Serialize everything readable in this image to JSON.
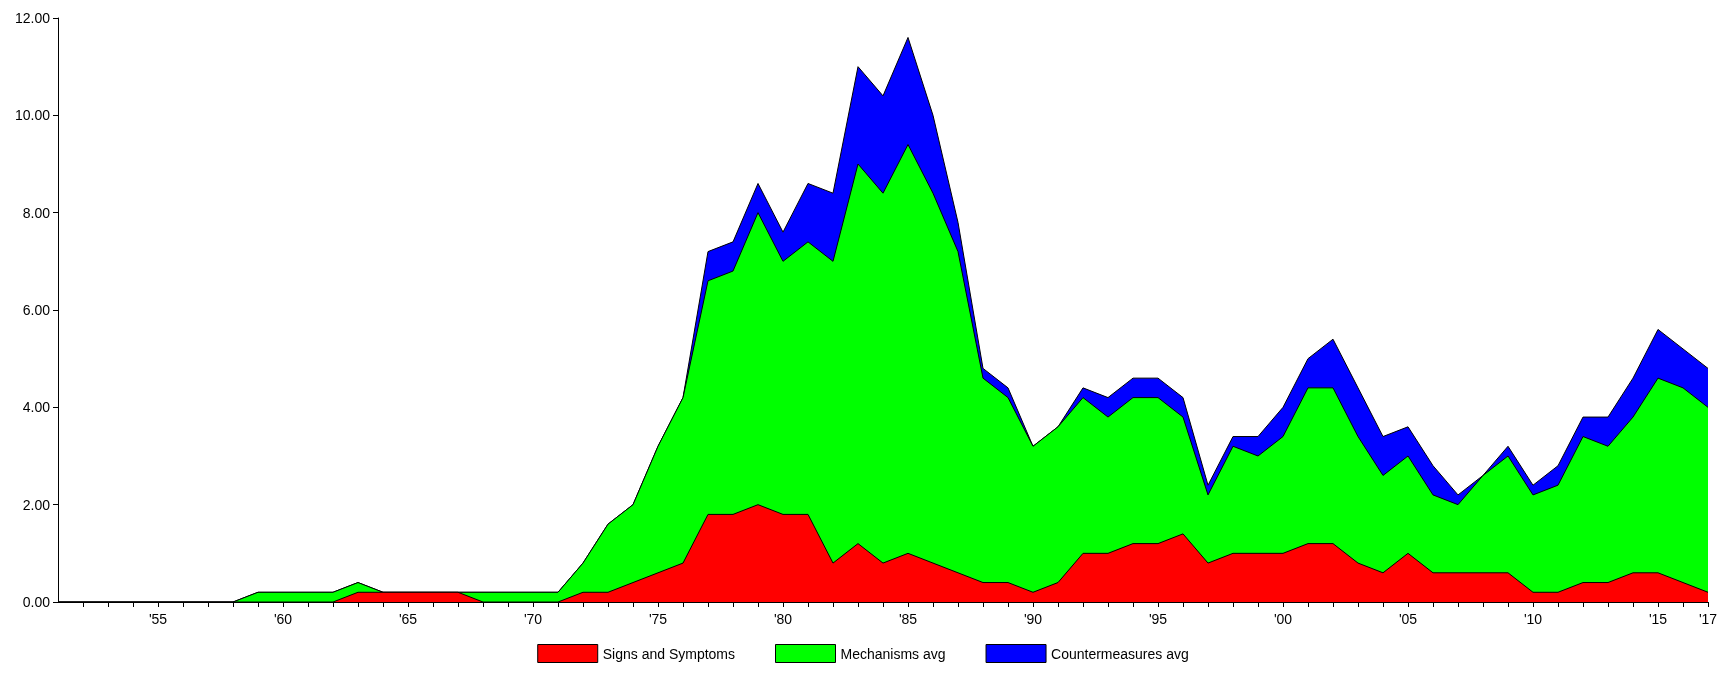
{
  "chart_data": {
    "type": "area",
    "stacked": true,
    "legend": "bottom",
    "grid": false,
    "marker": "none",
    "x": [
      1951,
      1952,
      1953,
      1954,
      1955,
      1956,
      1957,
      1958,
      1959,
      1960,
      1961,
      1962,
      1963,
      1964,
      1965,
      1966,
      1967,
      1968,
      1969,
      1970,
      1971,
      1972,
      1973,
      1974,
      1975,
      1976,
      1977,
      1978,
      1979,
      1980,
      1981,
      1982,
      1983,
      1984,
      1985,
      1986,
      1987,
      1988,
      1989,
      1990,
      1991,
      1992,
      1993,
      1994,
      1995,
      1996,
      1997,
      1998,
      1999,
      2000,
      2001,
      2002,
      2003,
      2004,
      2005,
      2006,
      2007,
      2008,
      2009,
      2010,
      2011,
      2012,
      2013,
      2014,
      2015,
      2016,
      2017
    ],
    "series": [
      {
        "name": "Signs and Symptoms",
        "color": "#ff0000",
        "values": [
          0,
          0,
          0,
          0,
          0,
          0,
          0,
          0,
          0,
          0,
          0,
          0,
          0.2,
          0.2,
          0.2,
          0.2,
          0.2,
          0,
          0,
          0,
          0,
          0.2,
          0.2,
          0.4,
          0.6,
          0.8,
          1.8,
          1.8,
          2.0,
          1.8,
          1.8,
          0.8,
          1.2,
          0.8,
          1.0,
          0.8,
          0.6,
          0.4,
          0.4,
          0.2,
          0.4,
          1.0,
          1.0,
          1.2,
          1.2,
          1.4,
          0.8,
          1.0,
          1.0,
          1.0,
          1.2,
          1.2,
          0.8,
          0.6,
          1.0,
          0.6,
          0.6,
          0.6,
          0.6,
          0.2,
          0.2,
          0.4,
          0.4,
          0.6,
          0.6,
          0.4,
          0.2
        ]
      },
      {
        "name": "Mechanisms avg",
        "color": "#00ff00",
        "values": [
          0,
          0,
          0,
          0,
          0,
          0,
          0,
          0,
          0.2,
          0.2,
          0.2,
          0.2,
          0.2,
          0,
          0,
          0,
          0,
          0.2,
          0.2,
          0.2,
          0.2,
          0.6,
          1.4,
          1.6,
          2.6,
          3.4,
          4.8,
          5.0,
          6.0,
          5.2,
          5.6,
          6.2,
          7.8,
          7.6,
          8.4,
          7.6,
          6.6,
          4.2,
          3.8,
          3.0,
          3.2,
          3.2,
          2.8,
          3.0,
          3.0,
          2.4,
          1.4,
          2.2,
          2.0,
          2.4,
          3.2,
          3.2,
          2.6,
          2.0,
          2.0,
          1.6,
          1.4,
          2.0,
          2.4,
          2.0,
          2.2,
          3.0,
          2.8,
          3.2,
          4.0,
          4.0,
          3.8
        ]
      },
      {
        "name": "Countermeasures avg",
        "color": "#0000ff",
        "values": [
          0,
          0,
          0,
          0,
          0,
          0,
          0,
          0,
          0,
          0,
          0,
          0,
          0,
          0,
          0,
          0,
          0,
          0,
          0,
          0,
          0,
          0,
          0,
          0,
          0,
          0,
          0.6,
          0.6,
          0.6,
          0.6,
          1.2,
          1.4,
          2.0,
          2.0,
          2.2,
          1.6,
          0.6,
          0.2,
          0.2,
          0,
          0,
          0.2,
          0.4,
          0.4,
          0.4,
          0.4,
          0.2,
          0.2,
          0.4,
          0.6,
          0.6,
          1.0,
          1.0,
          0.8,
          0.6,
          0.6,
          0.2,
          0,
          0.2,
          0.2,
          0.4,
          0.4,
          0.6,
          0.8,
          1.0,
          0.8,
          0.8
        ]
      }
    ],
    "xlim": [
      1951,
      2017
    ],
    "xticks": [
      {
        "value": 1952,
        "label": null
      },
      {
        "value": 1953,
        "label": null
      },
      {
        "value": 1954,
        "label": null
      },
      {
        "value": 1955,
        "label": "'55"
      },
      {
        "value": 1956,
        "label": null
      },
      {
        "value": 1957,
        "label": null
      },
      {
        "value": 1958,
        "label": null
      },
      {
        "value": 1959,
        "label": null
      },
      {
        "value": 1960,
        "label": "'60"
      },
      {
        "value": 1961,
        "label": null
      },
      {
        "value": 1962,
        "label": null
      },
      {
        "value": 1963,
        "label": null
      },
      {
        "value": 1964,
        "label": null
      },
      {
        "value": 1965,
        "label": "'65"
      },
      {
        "value": 1966,
        "label": null
      },
      {
        "value": 1967,
        "label": null
      },
      {
        "value": 1968,
        "label": null
      },
      {
        "value": 1969,
        "label": null
      },
      {
        "value": 1970,
        "label": "'70"
      },
      {
        "value": 1971,
        "label": null
      },
      {
        "value": 1972,
        "label": null
      },
      {
        "value": 1973,
        "label": null
      },
      {
        "value": 1974,
        "label": null
      },
      {
        "value": 1975,
        "label": "'75"
      },
      {
        "value": 1976,
        "label": null
      },
      {
        "value": 1977,
        "label": null
      },
      {
        "value": 1978,
        "label": null
      },
      {
        "value": 1979,
        "label": null
      },
      {
        "value": 1980,
        "label": "'80"
      },
      {
        "value": 1981,
        "label": null
      },
      {
        "value": 1982,
        "label": null
      },
      {
        "value": 1983,
        "label": null
      },
      {
        "value": 1984,
        "label": null
      },
      {
        "value": 1985,
        "label": "'85"
      },
      {
        "value": 1986,
        "label": null
      },
      {
        "value": 1987,
        "label": null
      },
      {
        "value": 1988,
        "label": null
      },
      {
        "value": 1989,
        "label": null
      },
      {
        "value": 1990,
        "label": "'90"
      },
      {
        "value": 1991,
        "label": null
      },
      {
        "value": 1992,
        "label": null
      },
      {
        "value": 1993,
        "label": null
      },
      {
        "value": 1994,
        "label": null
      },
      {
        "value": 1995,
        "label": "'95"
      },
      {
        "value": 1996,
        "label": null
      },
      {
        "value": 1997,
        "label": null
      },
      {
        "value": 1998,
        "label": null
      },
      {
        "value": 1999,
        "label": null
      },
      {
        "value": 2000,
        "label": "'00"
      },
      {
        "value": 2001,
        "label": null
      },
      {
        "value": 2002,
        "label": null
      },
      {
        "value": 2003,
        "label": null
      },
      {
        "value": 2004,
        "label": null
      },
      {
        "value": 2005,
        "label": "'05"
      },
      {
        "value": 2006,
        "label": null
      },
      {
        "value": 2007,
        "label": null
      },
      {
        "value": 2008,
        "label": null
      },
      {
        "value": 2009,
        "label": null
      },
      {
        "value": 2010,
        "label": "'10"
      },
      {
        "value": 2011,
        "label": null
      },
      {
        "value": 2012,
        "label": null
      },
      {
        "value": 2013,
        "label": null
      },
      {
        "value": 2014,
        "label": null
      },
      {
        "value": 2015,
        "label": "'15"
      },
      {
        "value": 2016,
        "label": null
      },
      {
        "value": 2017,
        "label": "'17"
      }
    ],
    "ylim": [
      0,
      12
    ],
    "yticks": [
      {
        "value": 0,
        "label": "0.00"
      },
      {
        "value": 2,
        "label": "2.00"
      },
      {
        "value": 4,
        "label": "4.00"
      },
      {
        "value": 6,
        "label": "6.00"
      },
      {
        "value": 8,
        "label": "8.00"
      },
      {
        "value": 10,
        "label": "10.00"
      },
      {
        "value": 12,
        "label": "12.00"
      }
    ]
  }
}
